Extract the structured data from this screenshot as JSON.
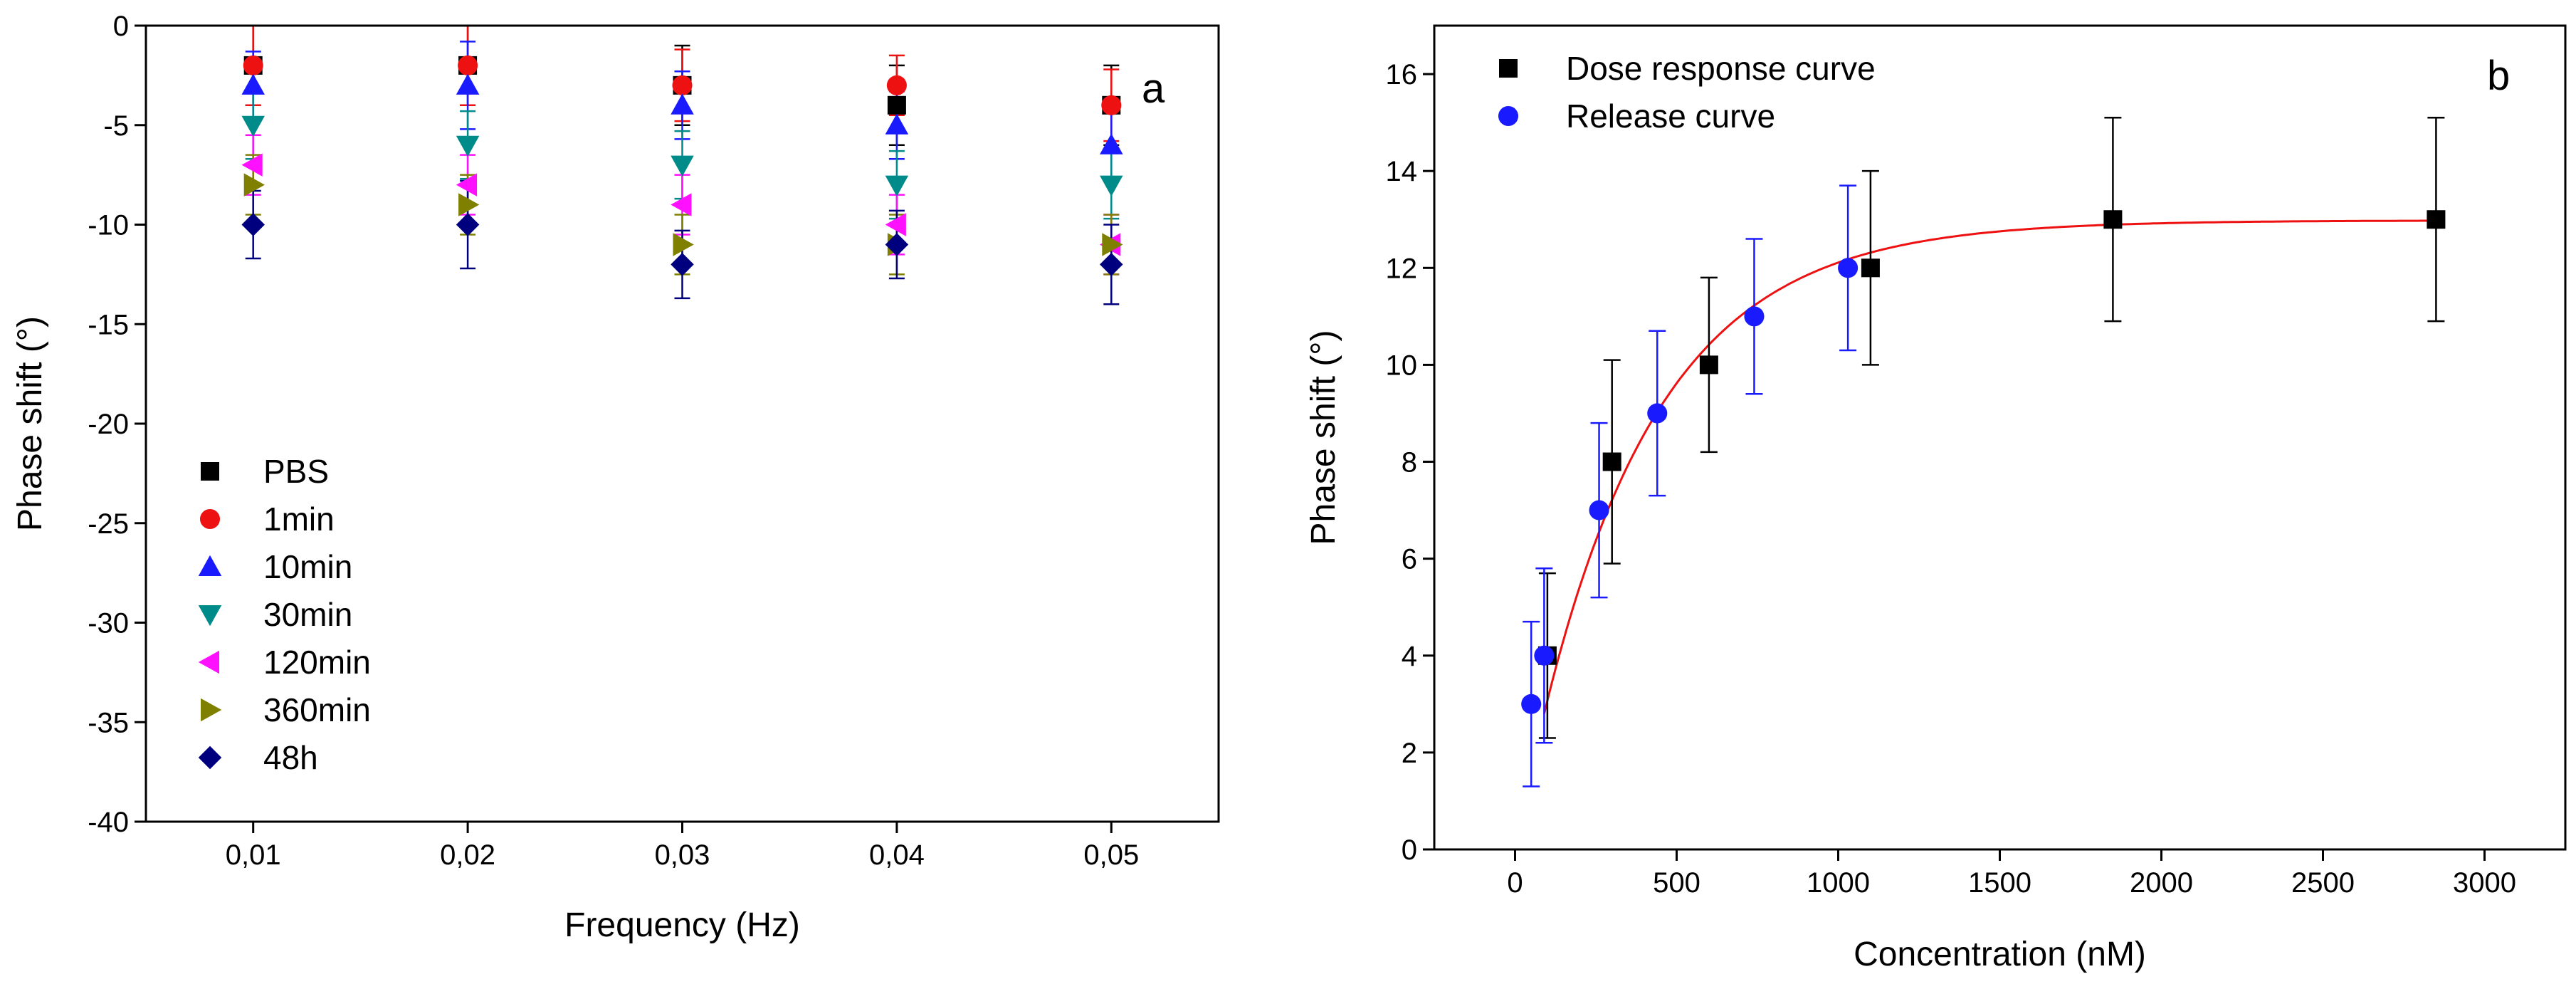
{
  "chart_data": [
    {
      "id": "a",
      "type": "scatter",
      "panel_label": "a",
      "xlabel": "Frequency (Hz)",
      "ylabel": "Phase shift (°)",
      "xlim": [
        0.005,
        0.055
      ],
      "ylim": [
        -40,
        0
      ],
      "x_ticks": [
        0.01,
        0.02,
        0.03,
        0.04,
        0.05
      ],
      "x_tick_labels": [
        "0,01",
        "0,02",
        "0,03",
        "0,04",
        "0,05"
      ],
      "y_ticks": [
        0,
        -5,
        -10,
        -15,
        -20,
        -25,
        -30,
        -35,
        -40
      ],
      "y_tick_labels": [
        "0",
        "-5",
        "-10",
        "-15",
        "-20",
        "-25",
        "-30",
        "-35",
        "-40"
      ],
      "legend_position": "bottom-left",
      "x": [
        0.01,
        0.02,
        0.03,
        0.04,
        0.05
      ],
      "series": [
        {
          "name": "PBS",
          "marker": "square",
          "color": "#000000",
          "values": [
            -2,
            -2,
            -3,
            -4,
            -4
          ],
          "error": [
            2,
            2,
            2,
            2,
            2
          ]
        },
        {
          "name": "1min",
          "marker": "circle",
          "color": "#ee1111",
          "values": [
            -2,
            -2,
            -3,
            -3,
            -4
          ],
          "error": [
            2,
            2,
            1.8,
            1.5,
            1.8
          ]
        },
        {
          "name": "10min",
          "marker": "triangle-up",
          "color": "#1a1aff",
          "values": [
            -3,
            -3,
            -4,
            -5,
            -6
          ],
          "error": [
            1.7,
            2.2,
            1.7,
            1.7,
            1.7
          ]
        },
        {
          "name": "30min",
          "marker": "triangle-down",
          "color": "#008b8b",
          "values": [
            -5,
            -6,
            -7,
            -8,
            -8
          ],
          "error": [
            1.7,
            1.7,
            1.7,
            1.7,
            1.7
          ]
        },
        {
          "name": "120min",
          "marker": "triangle-left",
          "color": "#ff11ff",
          "values": [
            -7,
            -8,
            -9,
            -10,
            -11
          ],
          "error": [
            1.5,
            1.5,
            1.5,
            1.5,
            1.5
          ]
        },
        {
          "name": "360min",
          "marker": "triangle-right",
          "color": "#7f7f00",
          "values": [
            -8,
            -9,
            -11,
            -11,
            -11
          ],
          "error": [
            1.5,
            1.5,
            1.5,
            1.5,
            1.5
          ]
        },
        {
          "name": "48h",
          "marker": "diamond",
          "color": "#00007f",
          "values": [
            -10,
            -10,
            -12,
            -11,
            -12
          ],
          "error": [
            1.7,
            2.2,
            1.7,
            1.7,
            2
          ]
        }
      ]
    },
    {
      "id": "b",
      "type": "scatter",
      "panel_label": "b",
      "xlabel": "Concentration (nM)",
      "ylabel": "Phase shift (°)",
      "xlim": [
        -250,
        3250
      ],
      "ylim": [
        0,
        17
      ],
      "x_ticks": [
        0,
        500,
        1000,
        1500,
        2000,
        2500,
        3000
      ],
      "x_tick_labels": [
        "0",
        "500",
        "1000",
        "1500",
        "2000",
        "2500",
        "3000"
      ],
      "y_ticks": [
        0,
        2,
        4,
        6,
        8,
        10,
        12,
        14,
        16
      ],
      "y_tick_labels": [
        "0",
        "2",
        "4",
        "6",
        "8",
        "10",
        "12",
        "14",
        "16"
      ],
      "legend_position": "top-left",
      "series": [
        {
          "name": "Dose response curve",
          "marker": "square",
          "color": "#000000",
          "error_color": "#000000",
          "x": [
            100,
            300,
            600,
            1100,
            1850,
            2850
          ],
          "values": [
            4,
            8,
            10,
            12,
            13,
            13
          ],
          "error": [
            1.7,
            2.1,
            1.8,
            2,
            2.1,
            2.1
          ]
        },
        {
          "name": "Release curve",
          "marker": "circle",
          "color": "#1a1aff",
          "error_color": "#1a1aff",
          "x": [
            50,
            90,
            260,
            440,
            740,
            1030
          ],
          "values": [
            3,
            4,
            7,
            9,
            11,
            12
          ],
          "error": [
            1.7,
            1.8,
            1.8,
            1.7,
            1.6,
            1.7
          ]
        }
      ],
      "fit_curve": {
        "name": "fit",
        "color": "#ee1111",
        "model": "ymax*(1-exp(-(x-x0)/tau))",
        "ymax": 12.98,
        "tau": 370,
        "x0": 0,
        "x_range": [
          90,
          2850
        ]
      }
    }
  ]
}
